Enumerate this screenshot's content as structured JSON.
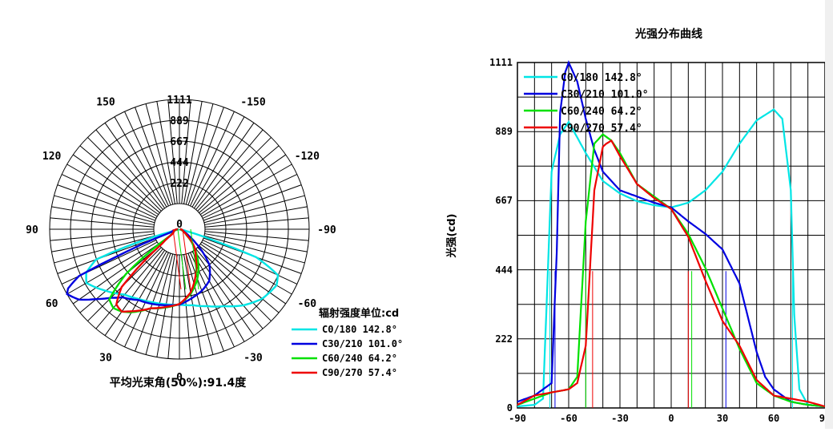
{
  "chart_data": [
    {
      "type": "polar",
      "title": "",
      "radial_ticks": [
        "1111",
        "889",
        "667",
        "444",
        "222",
        "0"
      ],
      "radial_max": 1111,
      "angle_labels": [
        "-150",
        "150",
        "-120",
        "120",
        "-90",
        "90",
        "-60",
        "60",
        "-30",
        "30",
        "0"
      ],
      "legend_title": "辐射强度单位:cd",
      "beam_angle_label": "平均光束角(50%):91.4度",
      "series": [
        {
          "name": "C0/180 142.8°",
          "color": "#00e5e5",
          "angles": [
            -90,
            -80,
            -75,
            -70,
            -65,
            -60,
            -50,
            -40,
            -30,
            -20,
            -10,
            0,
            10,
            20,
            30,
            40,
            50,
            60,
            65,
            70,
            72,
            75,
            80,
            90
          ],
          "values": [
            5,
            10,
            30,
            760,
            880,
            920,
            820,
            730,
            690,
            665,
            652,
            645,
            660,
            700,
            760,
            850,
            925,
            960,
            930,
            700,
            300,
            60,
            10,
            5
          ]
        },
        {
          "name": "C30/210 101.0°",
          "color": "#0000e0",
          "angles": [
            -90,
            -80,
            -70,
            -67,
            -65,
            -62,
            -60,
            -55,
            -50,
            -45,
            -40,
            -30,
            -20,
            -10,
            0,
            10,
            20,
            30,
            40,
            50,
            55,
            60,
            65,
            70,
            80,
            90
          ],
          "values": [
            20,
            40,
            80,
            500,
            950,
            1080,
            1111,
            1050,
            930,
            830,
            760,
            700,
            680,
            660,
            645,
            600,
            560,
            510,
            400,
            180,
            100,
            60,
            40,
            20,
            10,
            5
          ]
        },
        {
          "name": "C60/240 64.2°",
          "color": "#00e000",
          "angles": [
            -90,
            -80,
            -70,
            -60,
            -55,
            -50,
            -45,
            -40,
            -35,
            -30,
            -20,
            -10,
            0,
            10,
            20,
            30,
            40,
            50,
            60,
            70,
            80,
            90
          ],
          "values": [
            10,
            30,
            50,
            60,
            100,
            600,
            850,
            880,
            860,
            820,
            720,
            680,
            640,
            560,
            450,
            320,
            190,
            80,
            40,
            20,
            10,
            5
          ]
        },
        {
          "name": "C90/270 57.4°",
          "color": "#ee0000",
          "angles": [
            -90,
            -80,
            -70,
            -60,
            -55,
            -50,
            -45,
            -40,
            -38,
            -35,
            -30,
            -20,
            -10,
            0,
            10,
            20,
            30,
            40,
            50,
            60,
            70,
            80,
            90
          ],
          "values": [
            10,
            40,
            50,
            60,
            80,
            200,
            700,
            840,
            850,
            860,
            810,
            720,
            675,
            640,
            550,
            410,
            280,
            200,
            90,
            40,
            30,
            20,
            5
          ]
        }
      ]
    },
    {
      "type": "line",
      "title": "光强分布曲线",
      "ylabel": "光强(cd)",
      "xlabel": "",
      "xlim": [
        -90,
        90
      ],
      "ylim": [
        0,
        1111
      ],
      "x_ticks": [
        "-90",
        "-60",
        "-30",
        "0",
        "30",
        "60",
        "90"
      ],
      "y_ticks": [
        "0",
        "222",
        "444",
        "667",
        "889",
        "1111"
      ],
      "series_ref": "same series as polar chart",
      "legend": [
        "C0/180 142.8°",
        "C30/210 101.0°",
        "C60/240 64.2°",
        "C90/270 57.4°"
      ]
    }
  ]
}
